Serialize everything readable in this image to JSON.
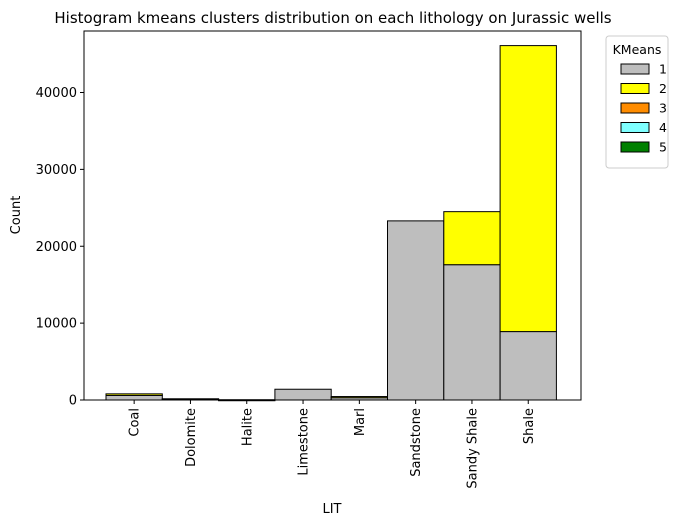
{
  "chart_data": {
    "type": "bar",
    "stacked": true,
    "title": "Histogram kmeans clusters distribution on each lithology on Jurassic wells",
    "xlabel": "LIT",
    "ylabel": "Count",
    "categories": [
      "Coal",
      "Dolomite",
      "Halite",
      "Limestone",
      "Marl",
      "Sandstone",
      "Sandy Shale",
      "Shale"
    ],
    "ylim": [
      0,
      48000
    ],
    "yticks": [
      0,
      10000,
      20000,
      30000,
      40000
    ],
    "ytick_labels": [
      "0",
      "10000",
      "20000",
      "30000",
      "40000"
    ],
    "grid": false,
    "legend": {
      "title": "KMeans",
      "placement": "outside-top-right"
    },
    "series": [
      {
        "name": "1",
        "color": "#bebebe",
        "values": [
          600,
          120,
          20,
          1400,
          300,
          23300,
          17600,
          8900
        ]
      },
      {
        "name": "2",
        "color": "#ffff00",
        "values": [
          200,
          40,
          5,
          0,
          150,
          0,
          6900,
          37200
        ]
      },
      {
        "name": "3",
        "color": "#ff8c00",
        "values": [
          0,
          0,
          0,
          0,
          0,
          0,
          0,
          0
        ]
      },
      {
        "name": "4",
        "color": "#7fffff",
        "values": [
          0,
          0,
          0,
          0,
          0,
          0,
          0,
          0
        ]
      },
      {
        "name": "5",
        "color": "#008000",
        "values": [
          0,
          0,
          0,
          0,
          0,
          0,
          0,
          0
        ]
      }
    ]
  }
}
